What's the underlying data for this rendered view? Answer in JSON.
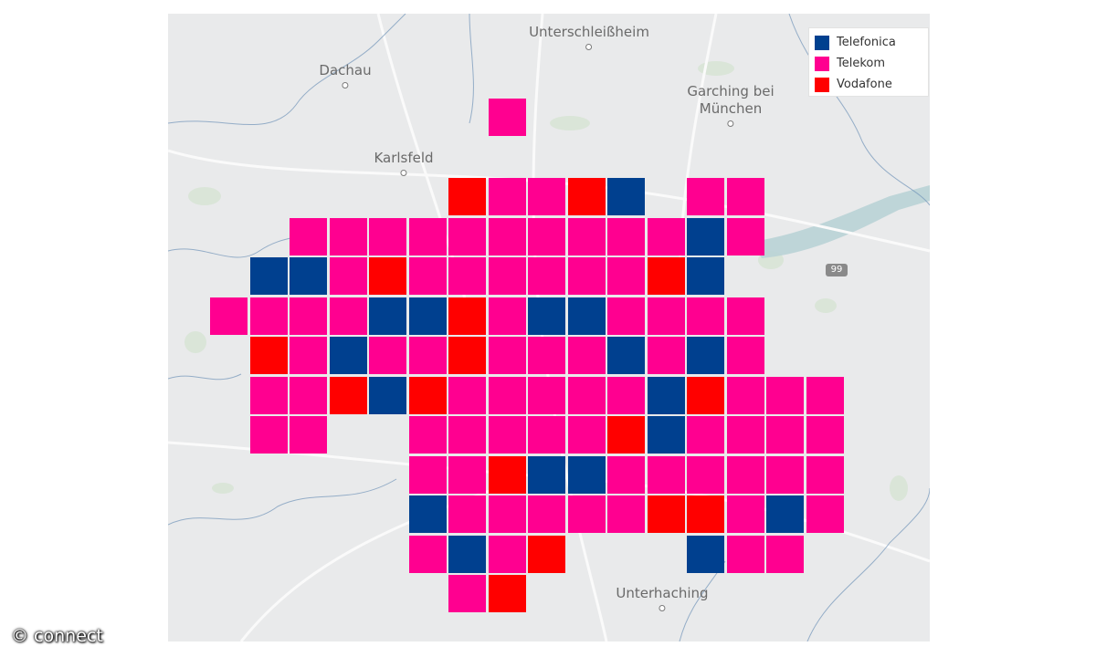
{
  "map": {
    "places": [
      {
        "name": "Unterschleißheim"
      },
      {
        "name": "Dachau"
      },
      {
        "name": "Garching bei\nMünchen"
      },
      {
        "name": "Karlsfeld"
      },
      {
        "name": "Unterhaching"
      }
    ],
    "highway_shield": "99"
  },
  "legend": {
    "items": [
      {
        "label": "Telefonica",
        "color": "#00408f"
      },
      {
        "label": "Telekom",
        "color": "#ff0090"
      },
      {
        "label": "Vodafone",
        "color": "#ff0000"
      }
    ]
  },
  "grid_rows": [
    {
      "row": 0,
      "cells": [
        [
          7,
          "Telekom"
        ]
      ]
    },
    {
      "row": 2,
      "cells": [
        [
          6,
          "Vodafone"
        ],
        [
          7,
          "Telekom"
        ],
        [
          8,
          "Telekom"
        ],
        [
          9,
          "Vodafone"
        ],
        [
          10,
          "Telefonica"
        ],
        [
          12,
          "Telekom"
        ],
        [
          13,
          "Telekom"
        ]
      ]
    },
    {
      "row": 3,
      "cells": [
        [
          2,
          "Telekom"
        ],
        [
          3,
          "Telekom"
        ],
        [
          4,
          "Telekom"
        ],
        [
          5,
          "Telekom"
        ],
        [
          6,
          "Telekom"
        ],
        [
          7,
          "Telekom"
        ],
        [
          8,
          "Telekom"
        ],
        [
          9,
          "Telekom"
        ],
        [
          10,
          "Telekom"
        ],
        [
          11,
          "Telekom"
        ],
        [
          12,
          "Telefonica"
        ],
        [
          13,
          "Telekom"
        ]
      ]
    },
    {
      "row": 4,
      "cells": [
        [
          1,
          "Telefonica"
        ],
        [
          2,
          "Telefonica"
        ],
        [
          3,
          "Telekom"
        ],
        [
          4,
          "Vodafone"
        ],
        [
          5,
          "Telekom"
        ],
        [
          6,
          "Telekom"
        ],
        [
          7,
          "Telekom"
        ],
        [
          8,
          "Telekom"
        ],
        [
          9,
          "Telekom"
        ],
        [
          10,
          "Telekom"
        ],
        [
          11,
          "Vodafone"
        ],
        [
          12,
          "Telefonica"
        ]
      ]
    },
    {
      "row": 5,
      "cells": [
        [
          0,
          "Telekom"
        ],
        [
          1,
          "Telekom"
        ],
        [
          2,
          "Telekom"
        ],
        [
          3,
          "Telekom"
        ],
        [
          4,
          "Telefonica"
        ],
        [
          5,
          "Telefonica"
        ],
        [
          6,
          "Vodafone"
        ],
        [
          7,
          "Telekom"
        ],
        [
          8,
          "Telefonica"
        ],
        [
          9,
          "Telefonica"
        ],
        [
          10,
          "Telekom"
        ],
        [
          11,
          "Telekom"
        ],
        [
          12,
          "Telekom"
        ],
        [
          13,
          "Telekom"
        ]
      ]
    },
    {
      "row": 6,
      "cells": [
        [
          1,
          "Vodafone"
        ],
        [
          2,
          "Telekom"
        ],
        [
          3,
          "Telefonica"
        ],
        [
          4,
          "Telekom"
        ],
        [
          5,
          "Telekom"
        ],
        [
          6,
          "Vodafone"
        ],
        [
          7,
          "Telekom"
        ],
        [
          8,
          "Telekom"
        ],
        [
          9,
          "Telekom"
        ],
        [
          10,
          "Telefonica"
        ],
        [
          11,
          "Telekom"
        ],
        [
          12,
          "Telefonica"
        ],
        [
          13,
          "Telekom"
        ]
      ]
    },
    {
      "row": 7,
      "cells": [
        [
          1,
          "Telekom"
        ],
        [
          2,
          "Telekom"
        ],
        [
          3,
          "Vodafone"
        ],
        [
          4,
          "Telefonica"
        ],
        [
          5,
          "Vodafone"
        ],
        [
          6,
          "Telekom"
        ],
        [
          7,
          "Telekom"
        ],
        [
          8,
          "Telekom"
        ],
        [
          9,
          "Telekom"
        ],
        [
          10,
          "Telekom"
        ],
        [
          11,
          "Telefonica"
        ],
        [
          12,
          "Vodafone"
        ],
        [
          13,
          "Telekom"
        ],
        [
          14,
          "Telekom"
        ],
        [
          15,
          "Telekom"
        ]
      ]
    },
    {
      "row": 8,
      "cells": [
        [
          1,
          "Telekom"
        ],
        [
          2,
          "Telekom"
        ],
        [
          5,
          "Telekom"
        ],
        [
          6,
          "Telekom"
        ],
        [
          7,
          "Telekom"
        ],
        [
          8,
          "Telekom"
        ],
        [
          9,
          "Telekom"
        ],
        [
          10,
          "Vodafone"
        ],
        [
          11,
          "Telefonica"
        ],
        [
          12,
          "Telekom"
        ],
        [
          13,
          "Telekom"
        ],
        [
          14,
          "Telekom"
        ],
        [
          15,
          "Telekom"
        ]
      ]
    },
    {
      "row": 9,
      "cells": [
        [
          5,
          "Telekom"
        ],
        [
          6,
          "Telekom"
        ],
        [
          7,
          "Vodafone"
        ],
        [
          8,
          "Telefonica"
        ],
        [
          9,
          "Telefonica"
        ],
        [
          10,
          "Telekom"
        ],
        [
          11,
          "Telekom"
        ],
        [
          12,
          "Telekom"
        ],
        [
          13,
          "Telekom"
        ],
        [
          14,
          "Telekom"
        ],
        [
          15,
          "Telekom"
        ]
      ]
    },
    {
      "row": 10,
      "cells": [
        [
          5,
          "Telefonica"
        ],
        [
          6,
          "Telekom"
        ],
        [
          7,
          "Telekom"
        ],
        [
          8,
          "Telekom"
        ],
        [
          9,
          "Telekom"
        ],
        [
          10,
          "Telekom"
        ],
        [
          11,
          "Vodafone"
        ],
        [
          12,
          "Vodafone"
        ],
        [
          13,
          "Telekom"
        ],
        [
          14,
          "Telefonica"
        ],
        [
          15,
          "Telekom"
        ]
      ]
    },
    {
      "row": 11,
      "cells": [
        [
          5,
          "Telekom"
        ],
        [
          6,
          "Telefonica"
        ],
        [
          7,
          "Telekom"
        ],
        [
          8,
          "Vodafone"
        ],
        [
          12,
          "Telefonica"
        ],
        [
          13,
          "Telekom"
        ],
        [
          14,
          "Telekom"
        ]
      ]
    },
    {
      "row": 12,
      "cells": [
        [
          6,
          "Telekom"
        ],
        [
          7,
          "Vodafone"
        ]
      ]
    }
  ],
  "copyright": "© connect"
}
